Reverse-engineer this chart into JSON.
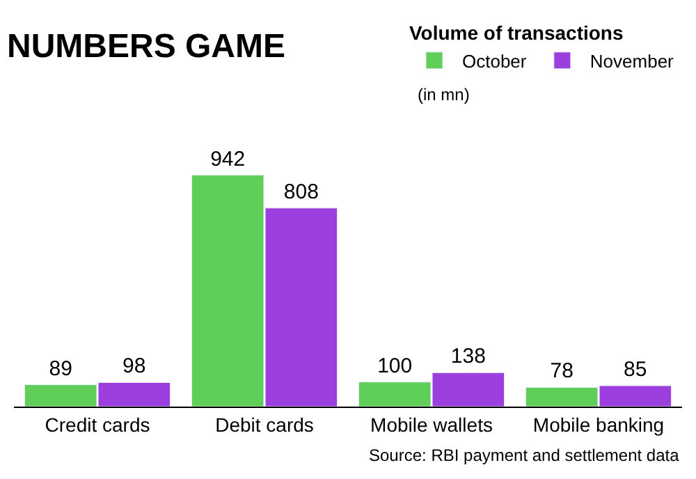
{
  "chart_data": {
    "type": "bar",
    "title": "NUMBERS GAME",
    "legend_title": "Volume of transactions",
    "subtitle": "(in mn)",
    "categories": [
      "Credit cards",
      "Debit cards",
      "Mobile wallets",
      "Mobile banking"
    ],
    "series": [
      {
        "name": "October",
        "color": "#5fcf5a",
        "values": [
          89,
          942,
          100,
          78
        ]
      },
      {
        "name": "November",
        "color": "#9d3fde",
        "values": [
          98,
          808,
          138,
          85
        ]
      }
    ],
    "data_labels": true,
    "legend": "top right",
    "annotations": [
      "Source: RBI payment and settlement data"
    ]
  }
}
